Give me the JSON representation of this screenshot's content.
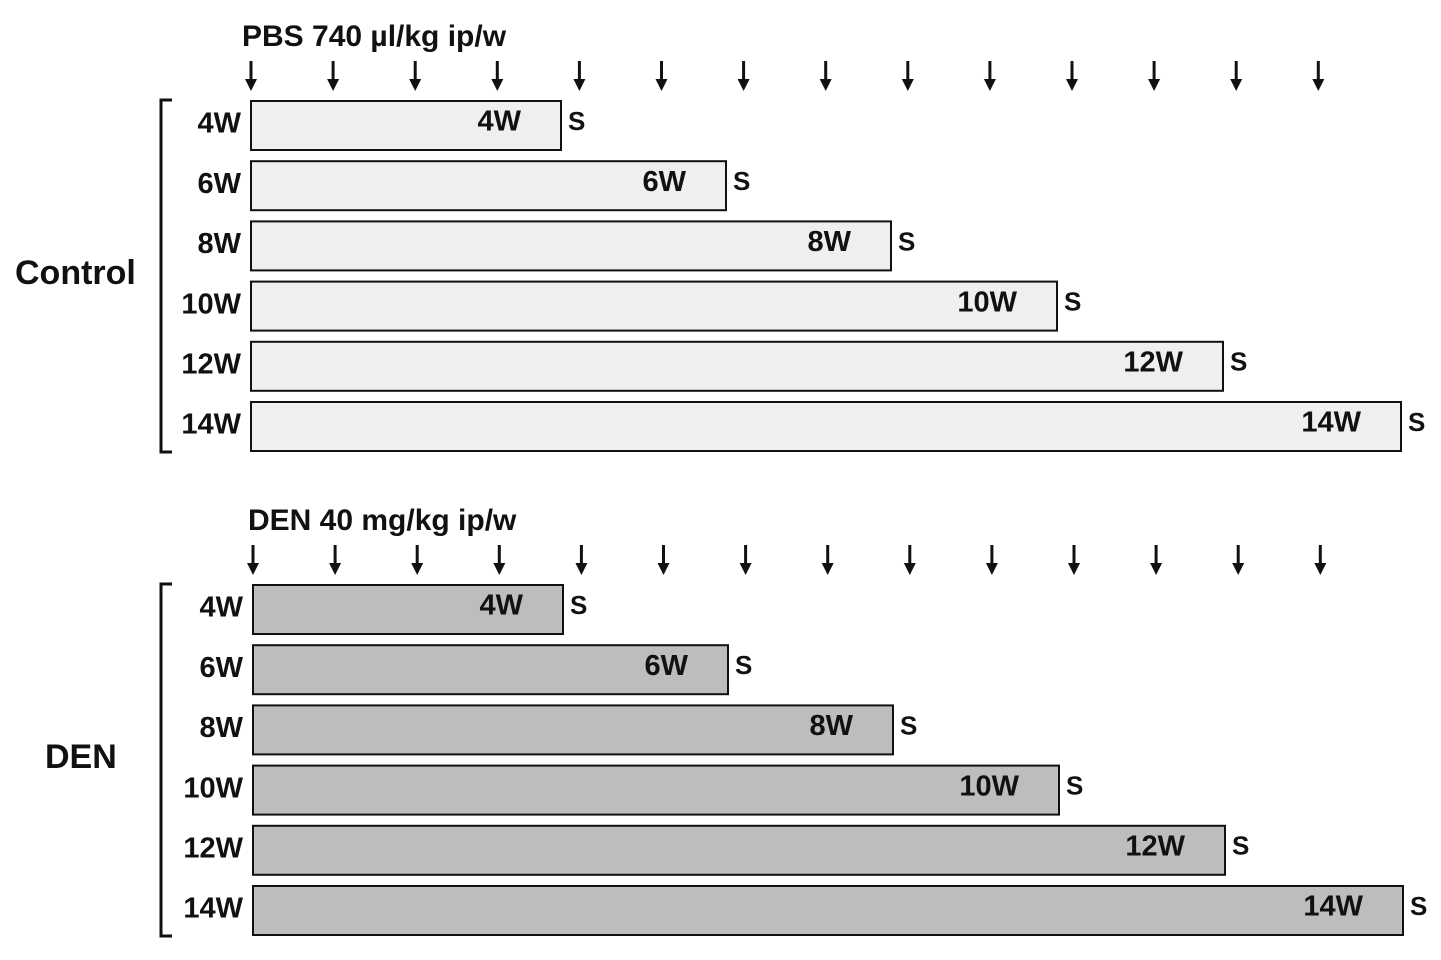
{
  "groups": [
    {
      "label": "Control",
      "treatment": "PBS 740 µl/kg ip/w",
      "rows": [
        {
          "label": "4W",
          "bar_label": "4W",
          "end_label": "S"
        },
        {
          "label": "6W",
          "bar_label": "6W",
          "end_label": "S"
        },
        {
          "label": "8W",
          "bar_label": "8W",
          "end_label": "S"
        },
        {
          "label": "10W",
          "bar_label": "10W",
          "end_label": "S"
        },
        {
          "label": "12W",
          "bar_label": "12W",
          "end_label": "S"
        },
        {
          "label": "14W",
          "bar_label": "14W",
          "end_label": "S"
        }
      ]
    },
    {
      "label": "DEN",
      "treatment": "DEN 40 mg/kg ip/w",
      "rows": [
        {
          "label": "4W",
          "bar_label": "4W",
          "end_label": "S"
        },
        {
          "label": "6W",
          "bar_label": "6W",
          "end_label": "S"
        },
        {
          "label": "8W",
          "bar_label": "8W",
          "end_label": "S"
        },
        {
          "label": "10W",
          "bar_label": "10W",
          "end_label": "S"
        },
        {
          "label": "12W",
          "bar_label": "12W",
          "end_label": "S"
        },
        {
          "label": "14W",
          "bar_label": "14W",
          "end_label": "S"
        }
      ]
    }
  ]
}
